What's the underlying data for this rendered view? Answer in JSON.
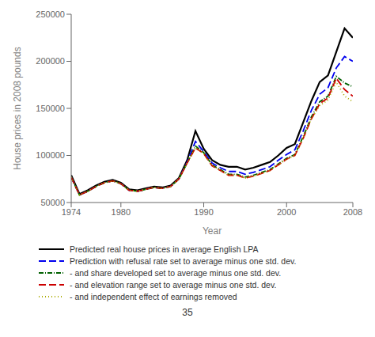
{
  "chart_data": {
    "type": "line",
    "x_label": "Year",
    "y_label": "House prices in 2008 pounds",
    "x": [
      1974,
      1975,
      1976,
      1977,
      1978,
      1979,
      1980,
      1981,
      1982,
      1983,
      1984,
      1985,
      1986,
      1987,
      1988,
      1989,
      1990,
      1991,
      1992,
      1993,
      1994,
      1995,
      1996,
      1997,
      1998,
      1999,
      2000,
      2001,
      2002,
      2003,
      2004,
      2005,
      2006,
      2007,
      2008
    ],
    "series": [
      {
        "name": "Predicted real house prices in average English LPA",
        "color": "#000000",
        "line_style": "solid",
        "values": [
          79000,
          59000,
          63000,
          68000,
          72000,
          74000,
          71000,
          64000,
          63000,
          65000,
          67000,
          66000,
          68000,
          76000,
          95000,
          126000,
          107000,
          95000,
          90000,
          88000,
          88000,
          85000,
          87000,
          90000,
          93000,
          100000,
          108000,
          112000,
          135000,
          158000,
          178000,
          185000,
          210000,
          235000,
          225000
        ]
      },
      {
        "name": "Prediction with refusal rate set to average minus one std. dev.",
        "color": "#0000ee",
        "line_style": "dashed",
        "values": [
          77000,
          58000,
          62000,
          67000,
          71000,
          73000,
          70000,
          63000,
          62000,
          64000,
          66000,
          65000,
          67000,
          75000,
          93000,
          115000,
          104000,
          92000,
          87000,
          83000,
          83000,
          80000,
          82000,
          85000,
          88000,
          95000,
          101000,
          106000,
          126000,
          148000,
          165000,
          172000,
          193000,
          205000,
          200000
        ]
      },
      {
        "name": "- and share developed set to average minus one std. dev.",
        "color": "#006000",
        "line_style": "dashdot",
        "values": [
          77000,
          58000,
          62000,
          67000,
          71000,
          73000,
          70000,
          63000,
          62000,
          64000,
          66000,
          65000,
          67000,
          75000,
          92000,
          110000,
          103000,
          90000,
          85000,
          80000,
          80000,
          77000,
          79000,
          82000,
          85000,
          91000,
          97000,
          101000,
          120000,
          141000,
          157000,
          163000,
          184000,
          177000,
          173000
        ]
      },
      {
        "name": "- and elevation range set to average minus one std. dev.",
        "color": "#cc0000",
        "line_style": "dashed",
        "values": [
          77000,
          58000,
          62000,
          67000,
          71000,
          73000,
          70000,
          63000,
          62000,
          64000,
          66000,
          65000,
          67000,
          75000,
          92000,
          108000,
          102000,
          89000,
          84000,
          79000,
          79000,
          76000,
          78000,
          81000,
          84000,
          90000,
          96000,
          100000,
          118000,
          139000,
          155000,
          161000,
          182000,
          170000,
          163000
        ]
      },
      {
        "name": "- and independent effect of earnings removed",
        "color": "#aaaa00",
        "line_style": "dotted",
        "values": [
          77000,
          58000,
          62000,
          67000,
          71000,
          73000,
          70000,
          63000,
          62000,
          64000,
          66000,
          65000,
          67000,
          75000,
          92000,
          108000,
          102000,
          89000,
          84000,
          79000,
          79000,
          76000,
          78000,
          81000,
          84000,
          90000,
          96000,
          100000,
          118000,
          139000,
          153000,
          159000,
          178000,
          163000,
          157000
        ]
      }
    ],
    "xlim": [
      1974,
      2008
    ],
    "xticks": [
      1974,
      1980,
      1990,
      2000,
      2008
    ],
    "ylim": [
      50000,
      250000
    ],
    "yticks": [
      50000,
      100000,
      150000,
      200000,
      250000
    ],
    "grid": false,
    "legend": "bottom",
    "annotations": [
      "35"
    ]
  }
}
